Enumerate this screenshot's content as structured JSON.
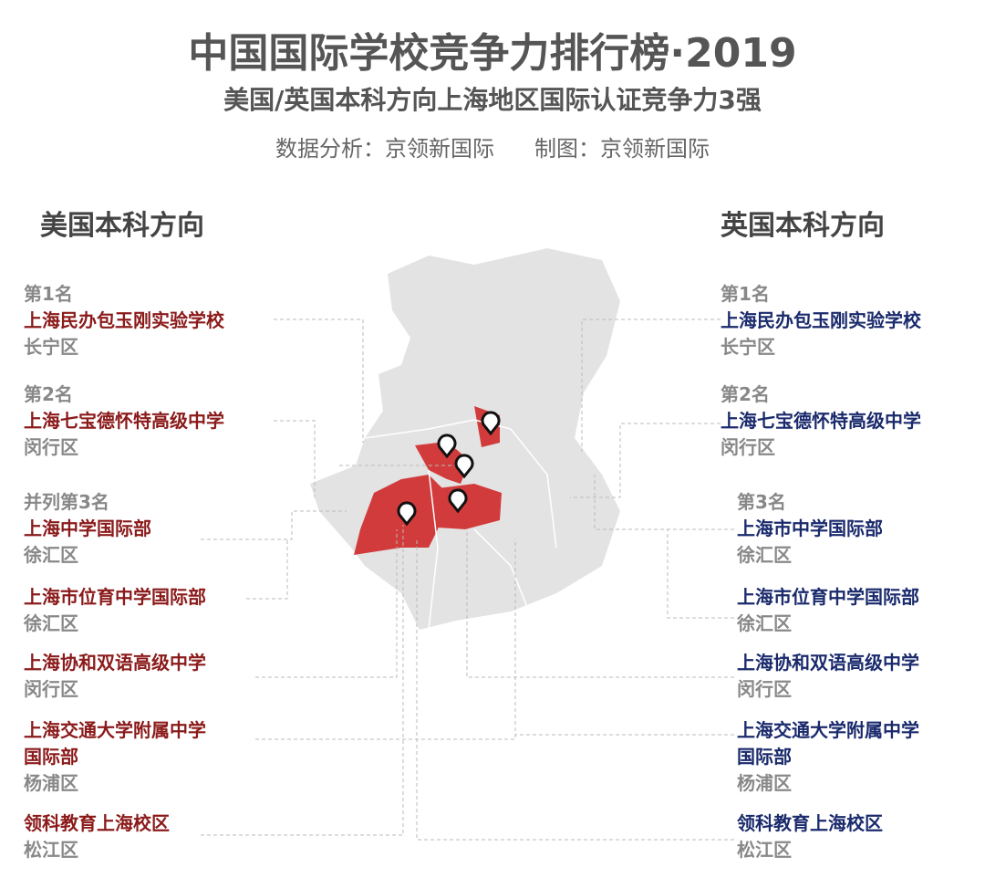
{
  "header": {
    "title": "中国国际学校竞争力排行榜·2019",
    "subtitle": "美国/英国本科方向上海地区国际认证竞争力3强",
    "credits": [
      "数据分析：京领新国际",
      "制图：京领新国际"
    ]
  },
  "columns": [
    {
      "heading": "美国本科方向",
      "entries": [
        {
          "rank": "第1名",
          "name": [
            "上海民办包玉刚实验学校"
          ],
          "district": "长宁区"
        },
        {
          "rank": "第2名",
          "name": [
            "上海七宝德怀特高级中学"
          ],
          "district": "闵行区"
        },
        {
          "rank": "并列第3名",
          "name": [
            "上海中学国际部"
          ],
          "district": "徐汇区"
        },
        {
          "name": [
            "上海市位育中学国际部"
          ],
          "district": "徐汇区"
        },
        {
          "name": [
            "上海协和双语高级中学"
          ],
          "district": "闵行区"
        },
        {
          "name": [
            "上海交通大学附属中学",
            "国际部"
          ],
          "district": "杨浦区"
        },
        {
          "name": [
            "领科教育上海校区"
          ],
          "district": "松江区"
        }
      ]
    },
    {
      "heading": "英国本科方向",
      "entries": [
        {
          "rank": "第1名",
          "name": [
            "上海民办包玉刚实验学校"
          ],
          "district": "长宁区"
        },
        {
          "rank": "第2名",
          "name": [
            "上海七宝德怀特高级中学"
          ],
          "district": "闵行区"
        },
        {
          "rank": "第3名",
          "name": [
            "上海市中学国际部"
          ],
          "district": "徐汇区"
        },
        {
          "name": [
            "上海市位育中学国际部"
          ],
          "district": "徐汇区"
        },
        {
          "name": [
            "上海协和双语高级中学"
          ],
          "district": "闵行区"
        },
        {
          "name": [
            "上海交通大学附属中学",
            "国际部"
          ],
          "district": "杨浦区"
        },
        {
          "name": [
            "领科教育上海校区"
          ],
          "district": "松江区"
        }
      ]
    }
  ]
}
